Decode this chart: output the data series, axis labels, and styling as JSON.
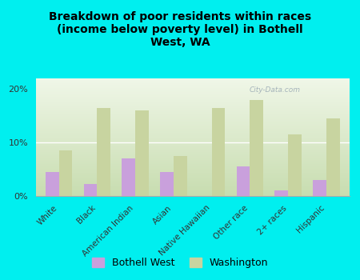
{
  "title": "Breakdown of poor residents within races\n(income below poverty level) in Bothell\nWest, WA",
  "categories": [
    "White",
    "Black",
    "American Indian",
    "Asian",
    "Native Hawaiian",
    "Other race",
    "2+ races",
    "Hispanic"
  ],
  "bothell_west": [
    4.5,
    2.2,
    7.0,
    4.5,
    0.0,
    5.5,
    1.0,
    3.0
  ],
  "washington": [
    8.5,
    16.5,
    16.0,
    7.5,
    16.5,
    18.0,
    11.5,
    14.5
  ],
  "bothell_color": "#c9a0dc",
  "washington_color": "#c8d4a0",
  "background_color": "#00efef",
  "ylim": [
    0,
    22
  ],
  "yticks": [
    0,
    10,
    20
  ],
  "ytick_labels": [
    "0%",
    "10%",
    "20%"
  ],
  "watermark": "City-Data.com",
  "legend_bothell": "Bothell West",
  "legend_washington": "Washington"
}
